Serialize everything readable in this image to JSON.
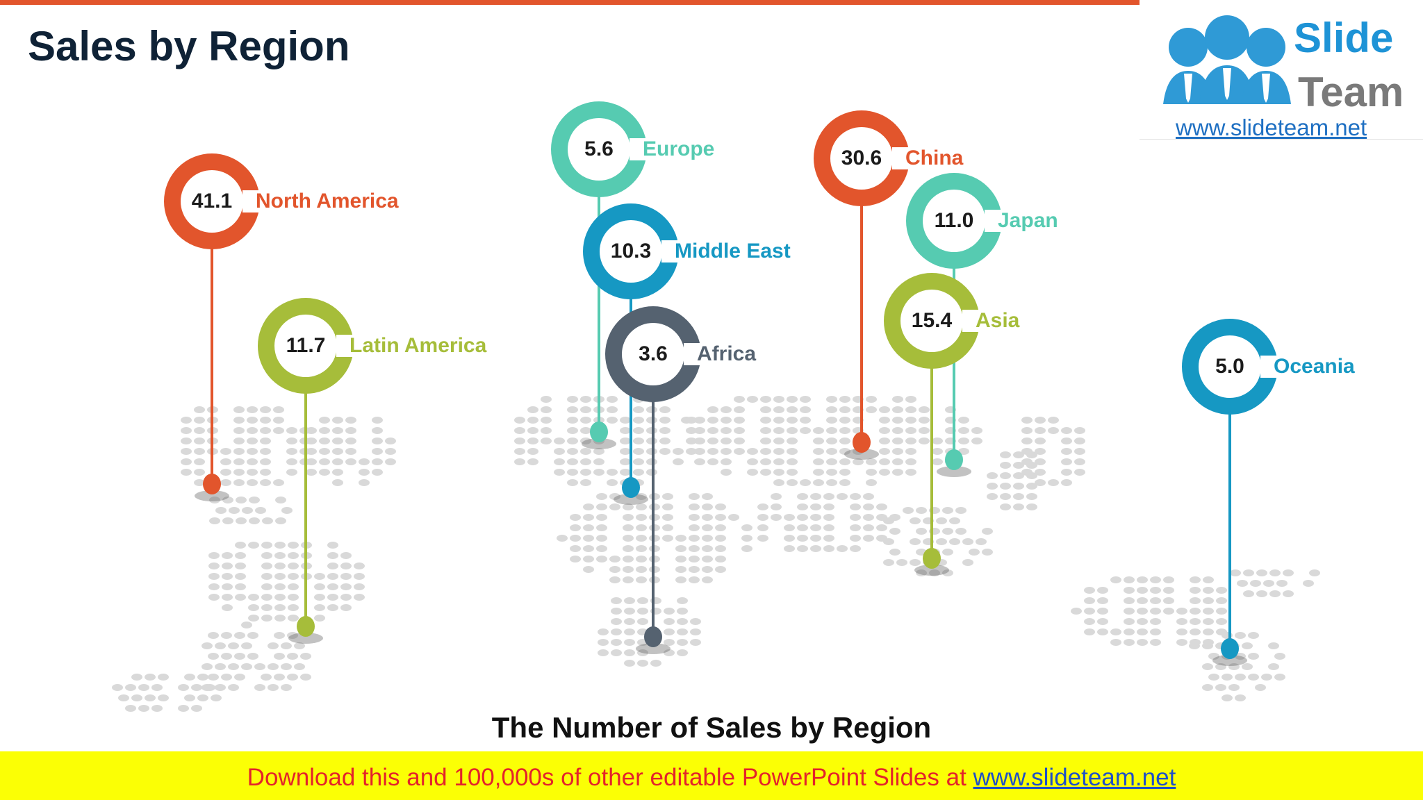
{
  "slide": {
    "title": "Sales by Region",
    "subtitle": "The Number of Sales by Region"
  },
  "logo": {
    "word1": "Slide",
    "word2": "Team",
    "url": "www.slideteam.net"
  },
  "banner": {
    "text": "Download this and 100,000s of other editable PowerPoint Slides at ",
    "link": "www.slideteam.net"
  },
  "colors": {
    "accent_orange": "#e2552c",
    "accent_green": "#a6bd3a",
    "accent_teal": "#56cbb1",
    "accent_blue": "#1698c3",
    "accent_slate": "#556270",
    "banner_bg": "#fbff05",
    "banner_text": "#e3232b"
  },
  "chart_data": {
    "type": "table",
    "title": "The Number of Sales by Region",
    "categories": [
      "North America",
      "Latin America",
      "Europe",
      "Middle East",
      "Africa",
      "China",
      "Japan",
      "Asia",
      "Oceania"
    ],
    "values": [
      41.1,
      11.7,
      5.6,
      10.3,
      3.6,
      30.6,
      11.0,
      15.4,
      5.0
    ]
  },
  "pins": [
    {
      "value": "41.1",
      "label": "North America",
      "color": "#e2552c"
    },
    {
      "value": "11.7",
      "label": "Latin America",
      "color": "#a6bd3a"
    },
    {
      "value": "5.6",
      "label": "Europe",
      "color": "#56cbb1"
    },
    {
      "value": "10.3",
      "label": "Middle East",
      "color": "#1698c3"
    },
    {
      "value": "3.6",
      "label": "Africa",
      "color": "#556270"
    },
    {
      "value": "30.6",
      "label": "China",
      "color": "#e2552c"
    },
    {
      "value": "11.0",
      "label": "Japan",
      "color": "#56cbb1"
    },
    {
      "value": "15.4",
      "label": "Asia",
      "color": "#a6bd3a"
    },
    {
      "value": "5.0",
      "label": "Oceania",
      "color": "#1698c3"
    }
  ]
}
